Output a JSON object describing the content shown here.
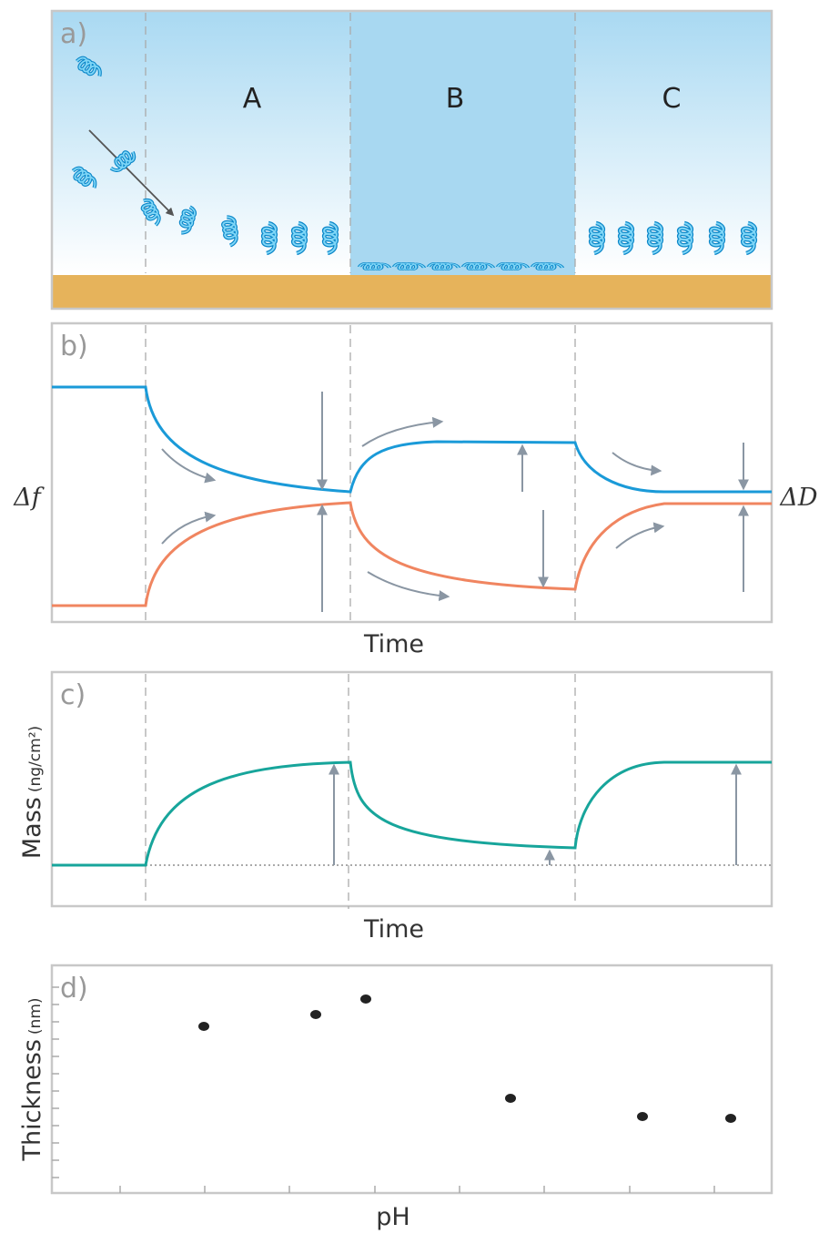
{
  "panels": {
    "a": {
      "label": "a)",
      "regions": [
        "A",
        "B",
        "C"
      ]
    },
    "b": {
      "label": "b)",
      "left_axis": "Δf",
      "right_axis": "ΔD",
      "x_axis": "Time"
    },
    "c": {
      "label": "c)",
      "y_axis": "Mass",
      "y_unit": "(ng/cm²)",
      "x_axis": "Time"
    },
    "d": {
      "label": "d)",
      "y_axis": "Thickness",
      "y_unit": "(nm)",
      "x_axis": "pH"
    }
  }
}
